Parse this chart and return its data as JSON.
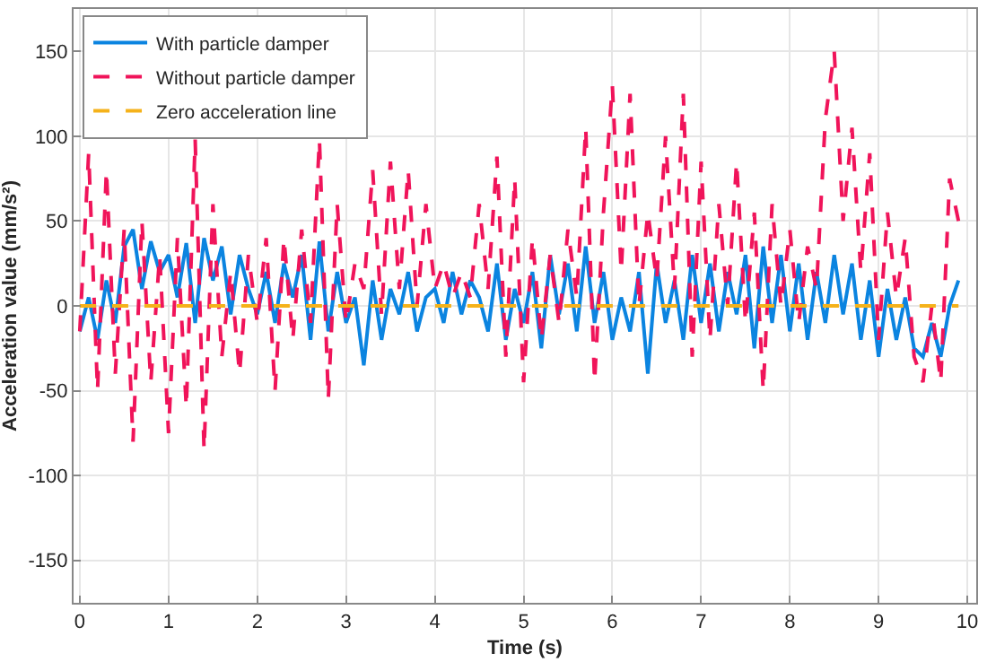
{
  "chart_data": {
    "type": "line",
    "xlabel": "Time (s)",
    "ylabel": "Acceleration value (mm/s²)",
    "x": [
      0,
      0.1,
      0.2,
      0.3,
      0.4,
      0.5,
      0.6,
      0.7,
      0.8,
      0.9,
      1,
      1.1,
      1.2,
      1.3,
      1.4,
      1.5,
      1.6,
      1.7,
      1.8,
      1.9,
      2,
      2.1,
      2.2,
      2.3,
      2.4,
      2.5,
      2.6,
      2.7,
      2.8,
      2.9,
      3,
      3.1,
      3.2,
      3.3,
      3.4,
      3.5,
      3.6,
      3.7,
      3.8,
      3.9,
      4,
      4.1,
      4.2,
      4.3,
      4.4,
      4.5,
      4.6,
      4.7,
      4.8,
      4.9,
      5,
      5.1,
      5.2,
      5.3,
      5.4,
      5.5,
      5.6,
      5.7,
      5.8,
      5.9,
      6,
      6.1,
      6.2,
      6.3,
      6.4,
      6.5,
      6.6,
      6.7,
      6.8,
      6.9,
      7,
      7.1,
      7.2,
      7.3,
      7.4,
      7.5,
      7.6,
      7.7,
      7.8,
      7.9,
      8,
      8.1,
      8.2,
      8.3,
      8.4,
      8.5,
      8.6,
      8.7,
      8.8,
      8.9,
      9,
      9.1,
      9.2,
      9.3,
      9.4,
      9.5,
      9.6,
      9.7,
      9.8,
      9.9
    ],
    "series": [
      {
        "name": "With particle damper",
        "color": "#0b84e0",
        "line_style": "solid",
        "values": [
          -15,
          5,
          -20,
          15,
          -10,
          35,
          45,
          10,
          38,
          20,
          30,
          5,
          37,
          -10,
          40,
          15,
          35,
          -5,
          30,
          10,
          -5,
          20,
          -10,
          25,
          5,
          30,
          -20,
          38,
          -15,
          20,
          -10,
          5,
          -35,
          15,
          -20,
          10,
          -5,
          20,
          -15,
          5,
          10,
          -10,
          20,
          -5,
          15,
          5,
          -15,
          25,
          -20,
          10,
          -10,
          20,
          -25,
          30,
          -5,
          25,
          -15,
          35,
          -10,
          20,
          -20,
          5,
          -15,
          20,
          -40,
          25,
          -10,
          15,
          -20,
          30,
          -10,
          25,
          -15,
          20,
          -5,
          30,
          -25,
          35,
          -10,
          30,
          -15,
          25,
          -20,
          20,
          -10,
          30,
          -5,
          25,
          -20,
          15,
          -30,
          10,
          -20,
          5,
          -25,
          -30,
          -10,
          -30,
          0,
          15
        ]
      },
      {
        "name": "Without particle damper",
        "color": "#f0145a",
        "line_style": "dashed",
        "values": [
          -15,
          90,
          -50,
          80,
          -40,
          45,
          -80,
          50,
          -45,
          30,
          -75,
          40,
          -60,
          98,
          -85,
          60,
          -30,
          20,
          -40,
          30,
          -10,
          40,
          -50,
          40,
          -20,
          45,
          -10,
          98,
          -55,
          60,
          -10,
          25,
          10,
          80,
          -5,
          85,
          10,
          80,
          0,
          60,
          10,
          25,
          5,
          20,
          5,
          60,
          10,
          88,
          -30,
          75,
          -45,
          40,
          -20,
          30,
          -10,
          45,
          5,
          105,
          -45,
          55,
          130,
          20,
          125,
          0,
          55,
          15,
          100,
          10,
          125,
          -30,
          85,
          -20,
          60,
          0,
          85,
          -10,
          55,
          -50,
          60,
          0,
          45,
          -10,
          35,
          10,
          110,
          150,
          50,
          105,
          20,
          90,
          -20,
          55,
          5,
          40,
          -30,
          -45,
          0,
          -45,
          75,
          50
        ]
      },
      {
        "name": "Zero acceleration line",
        "color": "#f5b21a",
        "line_style": "dashed",
        "x": [
          0,
          9.9
        ],
        "values": [
          0,
          0
        ]
      }
    ],
    "xlim": [
      -0.07,
      10.1
    ],
    "xticks": [
      0,
      1,
      2,
      3,
      4,
      5,
      6,
      7,
      8,
      9,
      10
    ],
    "ylim": [
      -175,
      175
    ],
    "yticks": [
      -150,
      -100,
      -50,
      0,
      50,
      100,
      150
    ],
    "grid": true,
    "legend": "top left",
    "marker": "none"
  }
}
